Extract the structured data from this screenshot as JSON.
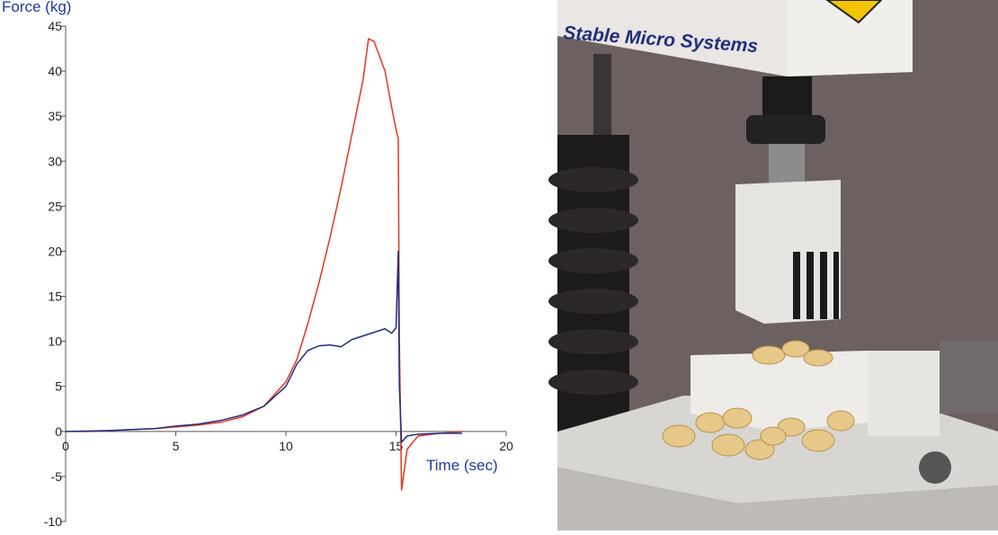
{
  "chart_data": {
    "type": "line",
    "y_label": "Force (kg)",
    "x_label": "Time (sec)",
    "x": [
      0,
      1,
      2,
      3,
      4,
      5,
      6,
      7,
      8,
      9,
      10,
      10.5,
      11,
      11.5,
      12,
      12.5,
      13,
      13.5,
      13.75,
      14,
      14.5,
      14.8,
      15,
      15.1,
      15.15,
      15.25,
      15.5,
      16,
      17,
      18
    ],
    "series": [
      {
        "name": null,
        "color": "#e8351e",
        "values": [
          0,
          0,
          0.1,
          0.2,
          0.3,
          0.5,
          0.7,
          1.0,
          1.6,
          2.8,
          5.5,
          8,
          12,
          16.5,
          21.5,
          27,
          33,
          39,
          43.6,
          43.3,
          40,
          36,
          33.5,
          32.5,
          10,
          -6.5,
          -2,
          -0.5,
          -0.2,
          0
        ]
      },
      {
        "name": null,
        "color": "#1c2f86",
        "values": [
          0,
          0.05,
          0.1,
          0.2,
          0.3,
          0.6,
          0.8,
          1.2,
          1.8,
          2.8,
          5,
          7.5,
          9,
          9.5,
          9.6,
          9.4,
          10.2,
          10.6,
          10.8,
          11,
          11.4,
          10.9,
          11.5,
          20,
          5,
          -1.2,
          -0.5,
          -0.3,
          -0.2,
          -0.2
        ]
      }
    ],
    "xlim": [
      0,
      20
    ],
    "xticks": [
      0,
      5,
      10,
      15,
      20
    ],
    "ylim": [
      -10,
      45
    ],
    "yticks": [
      -10,
      -5,
      0,
      5,
      10,
      15,
      20,
      25,
      30,
      35,
      40,
      45
    ],
    "grid": false
  },
  "image": {
    "brand_text": "Stable Micro Systems"
  }
}
